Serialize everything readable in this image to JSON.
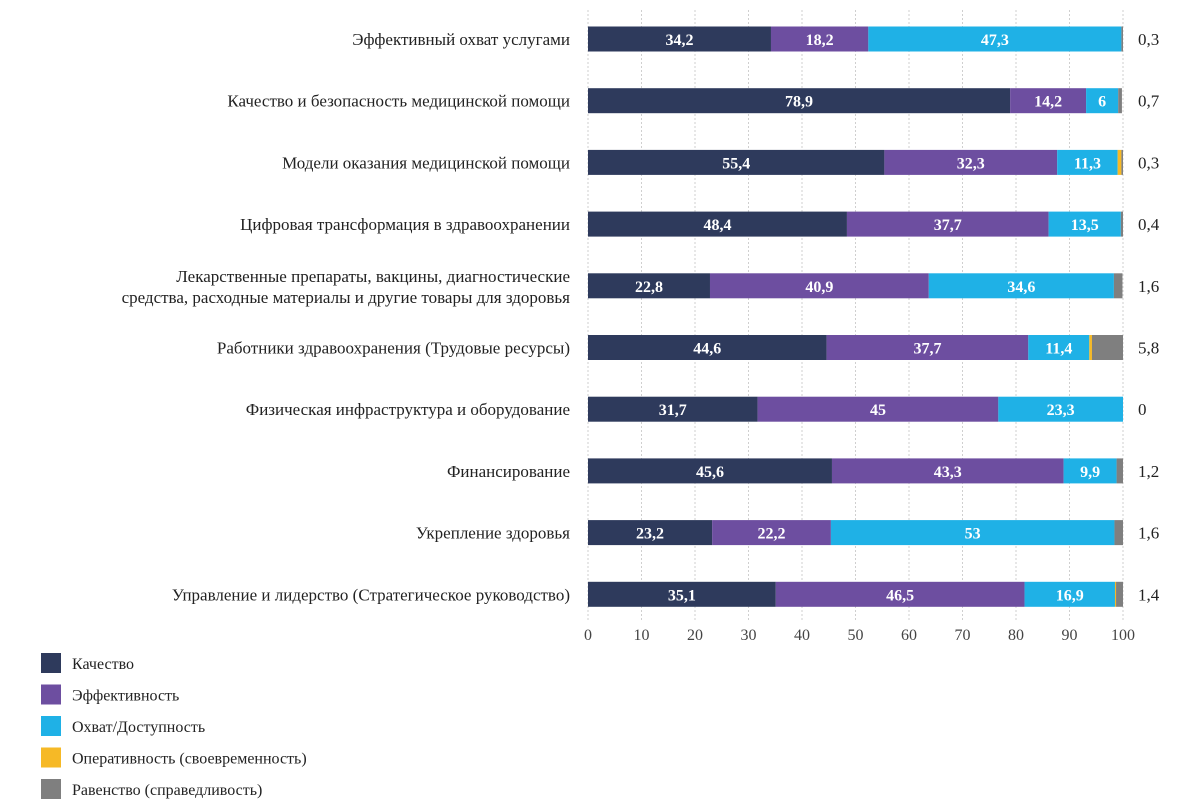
{
  "chart_data": {
    "type": "bar",
    "orientation": "horizontal",
    "stacked": true,
    "title": "",
    "xlabel": "",
    "ylabel": "",
    "xlim": [
      0,
      100
    ],
    "x_ticks": [
      0,
      10,
      20,
      30,
      40,
      50,
      60,
      70,
      80,
      90,
      100
    ],
    "grid": "vertical, dotted",
    "legend_position": "bottom-left",
    "categories": [
      [
        "Эффективный охват услугами"
      ],
      [
        "Качество и безопасность медицинской помощи"
      ],
      [
        "Модели оказания медицинской помощи"
      ],
      [
        "Цифровая трансформация в здравоохранении"
      ],
      [
        "Лекарственные препараты, вакцины, диагностические",
        "средства, расходные материалы и другие товары для здоровья"
      ],
      [
        "Работники здравоохранения (Трудовые ресурсы)"
      ],
      [
        "Физическая инфраструктура и оборудование"
      ],
      [
        "Финансирование"
      ],
      [
        "Укрепление здоровья"
      ],
      [
        "Управление и лидерство (Стратегическое руководство)"
      ]
    ],
    "series": [
      {
        "name": "Качество",
        "color": "#2e3a5c",
        "values": [
          34.2,
          78.9,
          55.4,
          48.4,
          22.8,
          44.6,
          31.7,
          45.6,
          23.2,
          35.1
        ],
        "labels": [
          "34,2",
          "78,9",
          "55,4",
          "48,4",
          "22,8",
          "44,6",
          "31,7",
          "45,6",
          "23,2",
          "35,1"
        ]
      },
      {
        "name": "Эффективность",
        "color": "#6d4ea0",
        "values": [
          18.2,
          14.2,
          32.3,
          37.7,
          40.9,
          37.7,
          45,
          43.3,
          22.2,
          46.5
        ],
        "labels": [
          "18,2",
          "14,2",
          "32,3",
          "37,7",
          "40,9",
          "37,7",
          "45",
          "43,3",
          "22,2",
          "46,5"
        ]
      },
      {
        "name": "Охват/Доступность",
        "color": "#1fb1e6",
        "values": [
          47.3,
          6,
          11.3,
          13.5,
          34.6,
          11.4,
          23.3,
          9.9,
          53,
          16.9
        ],
        "labels": [
          "47,3",
          "6",
          "11,3",
          "13,5",
          "34,6",
          "11,4",
          "23,3",
          "9,9",
          "53",
          "16,9"
        ]
      },
      {
        "name": "Оперативность (своевременность)",
        "color": "#f6b926",
        "values": [
          0,
          0,
          0.7,
          0,
          0,
          0.5,
          0,
          0,
          0,
          0.2
        ],
        "labels": []
      },
      {
        "name": "Равенство (справедливость)",
        "color": "#7f7f7f",
        "values": [
          0.3,
          0.7,
          0.3,
          0.4,
          1.6,
          5.8,
          0,
          1.2,
          1.6,
          1.4
        ],
        "labels": [
          "0,3",
          "0,7",
          "0,3",
          "0,4",
          "1,6",
          "5,8",
          "0",
          "1,2",
          "1,6",
          "1,4"
        ]
      }
    ]
  }
}
